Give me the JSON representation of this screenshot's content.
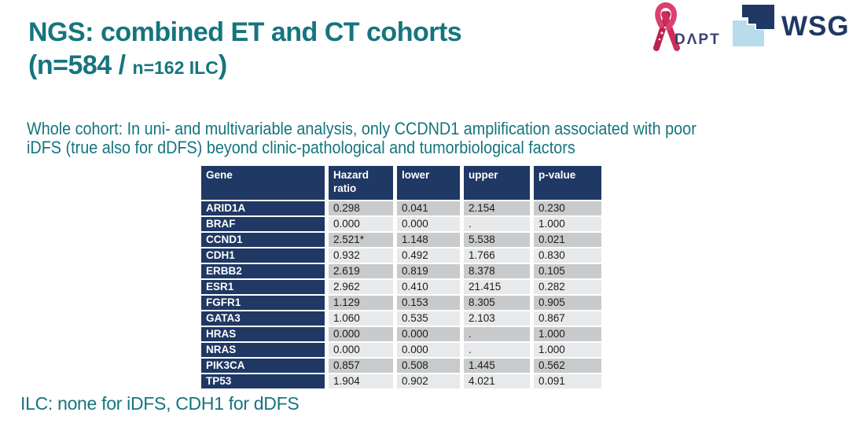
{
  "slide": {
    "title_line1": "NGS: combined ET and CT cohorts",
    "title_line2_open": "(n=584 / ",
    "title_line2_small": "n=162 ILC",
    "title_line2_close": ")",
    "subtitle_line1": "Whole cohort: In uni- and multivariable analysis, only CCDND1 amplification associated with poor",
    "subtitle_line2": "iDFS (true also for dDFS) beyond clinic-pathological and tumorbiological factors",
    "footnote": "ILC: none for iDFS, CDH1 for dDFS"
  },
  "logos": {
    "adapt_text": "DΛPT",
    "wsg_text": "WSG"
  },
  "colors": {
    "teal": "#15757e",
    "navy": "#1f3864",
    "row_dark_gray": "#c9cacc",
    "row_light_gray": "#e8e9ea",
    "ribbon_pink": "#dc4070",
    "ribbon_crimson": "#b92350",
    "adapt_navy": "#3c4070",
    "wsg_light_blue": "#b9dcec"
  },
  "table": {
    "columns": [
      "Gene",
      "Hazard ratio",
      "lower",
      "upper",
      "p-value"
    ],
    "rows": [
      {
        "gene": "ARID1A",
        "hazard_ratio": "0.298",
        "lower": "0.041",
        "upper": "2.154",
        "p_value": "0.230"
      },
      {
        "gene": "BRAF",
        "hazard_ratio": "0.000",
        "lower": "0.000",
        "upper": ".",
        "p_value": "1.000"
      },
      {
        "gene": "CCND1",
        "hazard_ratio": "2.521*",
        "lower": "1.148",
        "upper": "5.538",
        "p_value": "0.021"
      },
      {
        "gene": "CDH1",
        "hazard_ratio": "0.932",
        "lower": "0.492",
        "upper": "1.766",
        "p_value": "0.830"
      },
      {
        "gene": "ERBB2",
        "hazard_ratio": "2.619",
        "lower": "0.819",
        "upper": "8.378",
        "p_value": "0.105"
      },
      {
        "gene": "ESR1",
        "hazard_ratio": "2.962",
        "lower": "0.410",
        "upper": "21.415",
        "p_value": "0.282"
      },
      {
        "gene": "FGFR1",
        "hazard_ratio": "1.129",
        "lower": "0.153",
        "upper": "8.305",
        "p_value": "0.905"
      },
      {
        "gene": "GATA3",
        "hazard_ratio": "1.060",
        "lower": "0.535",
        "upper": "2.103",
        "p_value": "0.867"
      },
      {
        "gene": "HRAS",
        "hazard_ratio": "0.000",
        "lower": "0.000",
        "upper": ".",
        "p_value": "1.000"
      },
      {
        "gene": "NRAS",
        "hazard_ratio": "0.000",
        "lower": "0.000",
        "upper": ".",
        "p_value": "1.000"
      },
      {
        "gene": "PIK3CA",
        "hazard_ratio": "0.857",
        "lower": "0.508",
        "upper": "1.445",
        "p_value": "0.562"
      },
      {
        "gene": "TP53",
        "hazard_ratio": "1.904",
        "lower": "0.902",
        "upper": "4.021",
        "p_value": "0.091"
      }
    ]
  }
}
